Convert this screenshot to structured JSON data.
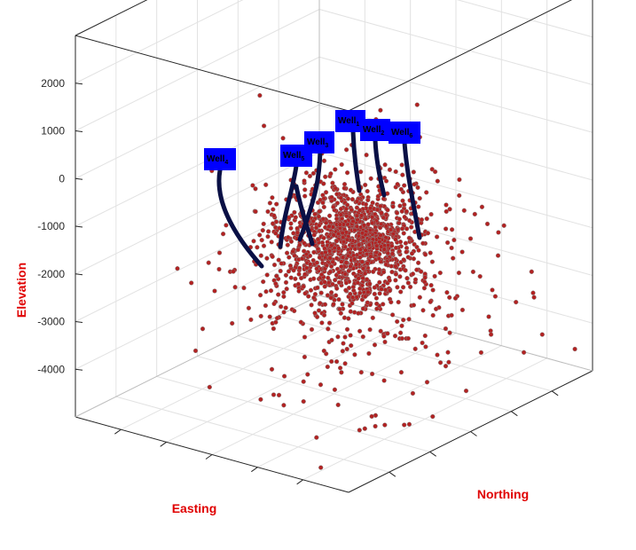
{
  "chart_data": {
    "type": "scatter3d",
    "title": "",
    "xlabel": "Easting",
    "ylabel": "Northing",
    "zlabel": "Elevation",
    "zlim": [
      -5000,
      3000
    ],
    "z_ticks": [
      2000,
      1000,
      0,
      -1000,
      -2000,
      -3000,
      -4000
    ],
    "grid": true,
    "marker_color": "#b22222",
    "marker_edge_color": "#8a8a8a",
    "well_color": "#0a1045",
    "label_bg_color": "#0000ff",
    "wells": [
      {
        "name": "Well",
        "sub": "1"
      },
      {
        "name": "Well",
        "sub": "2"
      },
      {
        "name": "Well",
        "sub": "3"
      },
      {
        "name": "Well",
        "sub": "4"
      },
      {
        "name": "Well",
        "sub": "5"
      },
      {
        "name": "Well",
        "sub": "6"
      }
    ]
  }
}
